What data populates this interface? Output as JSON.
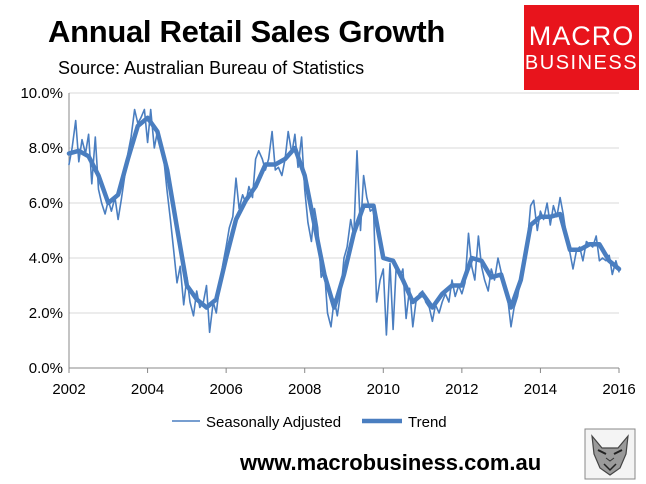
{
  "header": {
    "title": "Annual Retail Sales Growth",
    "subtitle": "Source: Australian Bureau of Statistics"
  },
  "logo": {
    "line1": "MACRO",
    "line2": "BUSINESS"
  },
  "footer": {
    "url": "www.macrobusiness.com.au"
  },
  "colors": {
    "line": "#4a7ec0",
    "grid": "#d9d9d9",
    "logo_bg": "#e8141c"
  },
  "icons": {
    "mascot": "wolf-icon"
  },
  "chart_data": {
    "type": "line",
    "title": "Annual Retail Sales Growth",
    "subtitle": "Source: Australian Bureau of Statistics",
    "xlabel": "",
    "ylabel": "",
    "xlim": [
      2002,
      2016
    ],
    "ylim": [
      0,
      10
    ],
    "x_ticks": [
      2002,
      2004,
      2006,
      2008,
      2010,
      2012,
      2014,
      2016
    ],
    "y_ticks": [
      0,
      2,
      4,
      6,
      8,
      10
    ],
    "y_tick_labels": [
      "0.0%",
      "2.0%",
      "4.0%",
      "6.0%",
      "8.0%",
      "10.0%"
    ],
    "grid": "horizontal",
    "legend": "bottom",
    "series": [
      {
        "name": "Seasonally Adjusted",
        "style": "thin",
        "points": [
          [
            2002.0,
            7.4
          ],
          [
            2002.08,
            8.0
          ],
          [
            2002.17,
            9.0
          ],
          [
            2002.25,
            7.5
          ],
          [
            2002.33,
            8.3
          ],
          [
            2002.42,
            7.8
          ],
          [
            2002.5,
            8.5
          ],
          [
            2002.58,
            6.7
          ],
          [
            2002.67,
            8.4
          ],
          [
            2002.75,
            6.5
          ],
          [
            2002.83,
            6.0
          ],
          [
            2002.92,
            5.6
          ],
          [
            2003.0,
            6.1
          ],
          [
            2003.08,
            5.7
          ],
          [
            2003.17,
            6.2
          ],
          [
            2003.25,
            5.4
          ],
          [
            2003.33,
            6.1
          ],
          [
            2003.42,
            7.0
          ],
          [
            2003.5,
            7.8
          ],
          [
            2003.58,
            8.4
          ],
          [
            2003.67,
            9.4
          ],
          [
            2003.75,
            8.9
          ],
          [
            2003.83,
            9.1
          ],
          [
            2003.92,
            9.4
          ],
          [
            2004.0,
            8.2
          ],
          [
            2004.08,
            9.4
          ],
          [
            2004.17,
            8.0
          ],
          [
            2004.25,
            8.6
          ],
          [
            2004.33,
            8.0
          ],
          [
            2004.42,
            7.5
          ],
          [
            2004.5,
            6.4
          ],
          [
            2004.58,
            5.4
          ],
          [
            2004.67,
            4.2
          ],
          [
            2004.75,
            3.1
          ],
          [
            2004.83,
            3.7
          ],
          [
            2004.92,
            2.3
          ],
          [
            2005.0,
            3.3
          ],
          [
            2005.08,
            2.4
          ],
          [
            2005.17,
            1.9
          ],
          [
            2005.25,
            2.8
          ],
          [
            2005.33,
            2.2
          ],
          [
            2005.42,
            2.4
          ],
          [
            2005.5,
            3.0
          ],
          [
            2005.58,
            1.3
          ],
          [
            2005.67,
            2.4
          ],
          [
            2005.75,
            2.0
          ],
          [
            2005.83,
            3.0
          ],
          [
            2005.92,
            3.8
          ],
          [
            2006.0,
            4.4
          ],
          [
            2006.08,
            5.1
          ],
          [
            2006.17,
            5.5
          ],
          [
            2006.25,
            6.9
          ],
          [
            2006.33,
            5.8
          ],
          [
            2006.42,
            6.3
          ],
          [
            2006.5,
            6.0
          ],
          [
            2006.58,
            6.6
          ],
          [
            2006.67,
            6.2
          ],
          [
            2006.75,
            7.6
          ],
          [
            2006.83,
            7.9
          ],
          [
            2006.92,
            7.6
          ],
          [
            2007.0,
            7.2
          ],
          [
            2007.08,
            7.6
          ],
          [
            2007.17,
            8.6
          ],
          [
            2007.25,
            7.2
          ],
          [
            2007.33,
            7.3
          ],
          [
            2007.42,
            7.0
          ],
          [
            2007.5,
            7.6
          ],
          [
            2007.58,
            8.6
          ],
          [
            2007.67,
            7.8
          ],
          [
            2007.75,
            8.5
          ],
          [
            2007.83,
            7.3
          ],
          [
            2007.92,
            8.4
          ],
          [
            2008.0,
            6.5
          ],
          [
            2008.08,
            5.3
          ],
          [
            2008.17,
            4.6
          ],
          [
            2008.25,
            5.8
          ],
          [
            2008.33,
            5.1
          ],
          [
            2008.42,
            3.3
          ],
          [
            2008.5,
            3.6
          ],
          [
            2008.58,
            2.0
          ],
          [
            2008.67,
            1.5
          ],
          [
            2008.75,
            2.5
          ],
          [
            2008.83,
            1.9
          ],
          [
            2008.92,
            2.8
          ],
          [
            2009.0,
            4.0
          ],
          [
            2009.08,
            4.4
          ],
          [
            2009.17,
            5.4
          ],
          [
            2009.25,
            4.8
          ],
          [
            2009.33,
            7.9
          ],
          [
            2009.42,
            5.0
          ],
          [
            2009.5,
            7.0
          ],
          [
            2009.58,
            6.2
          ],
          [
            2009.67,
            5.7
          ],
          [
            2009.75,
            5.8
          ],
          [
            2009.83,
            2.4
          ],
          [
            2009.92,
            3.2
          ],
          [
            2010.0,
            3.6
          ],
          [
            2010.08,
            1.2
          ],
          [
            2010.17,
            3.8
          ],
          [
            2010.25,
            1.4
          ],
          [
            2010.33,
            3.7
          ],
          [
            2010.42,
            3.3
          ],
          [
            2010.5,
            3.6
          ],
          [
            2010.58,
            1.8
          ],
          [
            2010.67,
            2.9
          ],
          [
            2010.75,
            1.5
          ],
          [
            2010.83,
            2.4
          ],
          [
            2010.92,
            2.7
          ],
          [
            2011.0,
            2.8
          ],
          [
            2011.08,
            2.4
          ],
          [
            2011.17,
            2.2
          ],
          [
            2011.25,
            1.7
          ],
          [
            2011.33,
            2.3
          ],
          [
            2011.42,
            2.0
          ],
          [
            2011.5,
            2.4
          ],
          [
            2011.58,
            2.7
          ],
          [
            2011.67,
            2.4
          ],
          [
            2011.75,
            3.2
          ],
          [
            2011.83,
            2.6
          ],
          [
            2011.92,
            3.0
          ],
          [
            2012.0,
            2.7
          ],
          [
            2012.08,
            3.1
          ],
          [
            2012.17,
            4.9
          ],
          [
            2012.25,
            3.7
          ],
          [
            2012.33,
            3.2
          ],
          [
            2012.42,
            4.8
          ],
          [
            2012.5,
            3.7
          ],
          [
            2012.58,
            3.2
          ],
          [
            2012.67,
            2.8
          ],
          [
            2012.75,
            3.6
          ],
          [
            2012.83,
            3.2
          ],
          [
            2012.92,
            4.0
          ],
          [
            2013.0,
            3.5
          ],
          [
            2013.08,
            3.0
          ],
          [
            2013.17,
            2.5
          ],
          [
            2013.25,
            1.5
          ],
          [
            2013.33,
            2.2
          ],
          [
            2013.42,
            2.6
          ],
          [
            2013.5,
            3.3
          ],
          [
            2013.58,
            3.6
          ],
          [
            2013.67,
            4.6
          ],
          [
            2013.75,
            5.9
          ],
          [
            2013.83,
            6.1
          ],
          [
            2013.92,
            5.0
          ],
          [
            2014.0,
            5.7
          ],
          [
            2014.08,
            5.4
          ],
          [
            2014.17,
            6.0
          ],
          [
            2014.25,
            5.2
          ],
          [
            2014.33,
            5.9
          ],
          [
            2014.42,
            5.5
          ],
          [
            2014.5,
            6.2
          ],
          [
            2014.58,
            5.6
          ],
          [
            2014.67,
            4.7
          ],
          [
            2014.75,
            4.2
          ],
          [
            2014.83,
            3.6
          ],
          [
            2014.92,
            4.3
          ],
          [
            2015.0,
            4.4
          ],
          [
            2015.08,
            3.9
          ],
          [
            2015.17,
            4.6
          ],
          [
            2015.25,
            4.5
          ],
          [
            2015.33,
            4.4
          ],
          [
            2015.42,
            4.8
          ],
          [
            2015.5,
            3.9
          ],
          [
            2015.58,
            4.0
          ],
          [
            2015.67,
            3.9
          ],
          [
            2015.75,
            4.1
          ],
          [
            2015.83,
            3.4
          ],
          [
            2015.92,
            3.9
          ],
          [
            2016.0,
            3.5
          ]
        ]
      },
      {
        "name": "Trend",
        "style": "thick",
        "points": [
          [
            2002.0,
            7.8
          ],
          [
            2002.25,
            7.9
          ],
          [
            2002.5,
            7.7
          ],
          [
            2002.75,
            7.0
          ],
          [
            2003.0,
            6.0
          ],
          [
            2003.25,
            6.3
          ],
          [
            2003.5,
            7.6
          ],
          [
            2003.75,
            8.8
          ],
          [
            2004.0,
            9.1
          ],
          [
            2004.25,
            8.6
          ],
          [
            2004.5,
            7.2
          ],
          [
            2004.75,
            5.1
          ],
          [
            2005.0,
            3.0
          ],
          [
            2005.25,
            2.5
          ],
          [
            2005.5,
            2.2
          ],
          [
            2005.75,
            2.5
          ],
          [
            2006.0,
            4.0
          ],
          [
            2006.25,
            5.4
          ],
          [
            2006.5,
            6.1
          ],
          [
            2006.75,
            6.6
          ],
          [
            2007.0,
            7.4
          ],
          [
            2007.25,
            7.4
          ],
          [
            2007.5,
            7.6
          ],
          [
            2007.75,
            8.0
          ],
          [
            2008.0,
            7.0
          ],
          [
            2008.25,
            5.2
          ],
          [
            2008.5,
            3.4
          ],
          [
            2008.75,
            2.2
          ],
          [
            2009.0,
            3.4
          ],
          [
            2009.25,
            4.9
          ],
          [
            2009.5,
            5.9
          ],
          [
            2009.75,
            5.9
          ],
          [
            2010.0,
            4.0
          ],
          [
            2010.25,
            3.9
          ],
          [
            2010.5,
            3.2
          ],
          [
            2010.75,
            2.4
          ],
          [
            2011.0,
            2.7
          ],
          [
            2011.25,
            2.2
          ],
          [
            2011.5,
            2.7
          ],
          [
            2011.75,
            3.0
          ],
          [
            2012.0,
            3.0
          ],
          [
            2012.25,
            4.0
          ],
          [
            2012.5,
            3.9
          ],
          [
            2012.75,
            3.3
          ],
          [
            2013.0,
            3.4
          ],
          [
            2013.25,
            2.2
          ],
          [
            2013.5,
            3.2
          ],
          [
            2013.75,
            5.2
          ],
          [
            2014.0,
            5.5
          ],
          [
            2014.25,
            5.5
          ],
          [
            2014.5,
            5.6
          ],
          [
            2014.75,
            4.3
          ],
          [
            2015.0,
            4.3
          ],
          [
            2015.25,
            4.5
          ],
          [
            2015.5,
            4.5
          ],
          [
            2015.75,
            3.9
          ],
          [
            2016.0,
            3.6
          ]
        ]
      }
    ]
  }
}
